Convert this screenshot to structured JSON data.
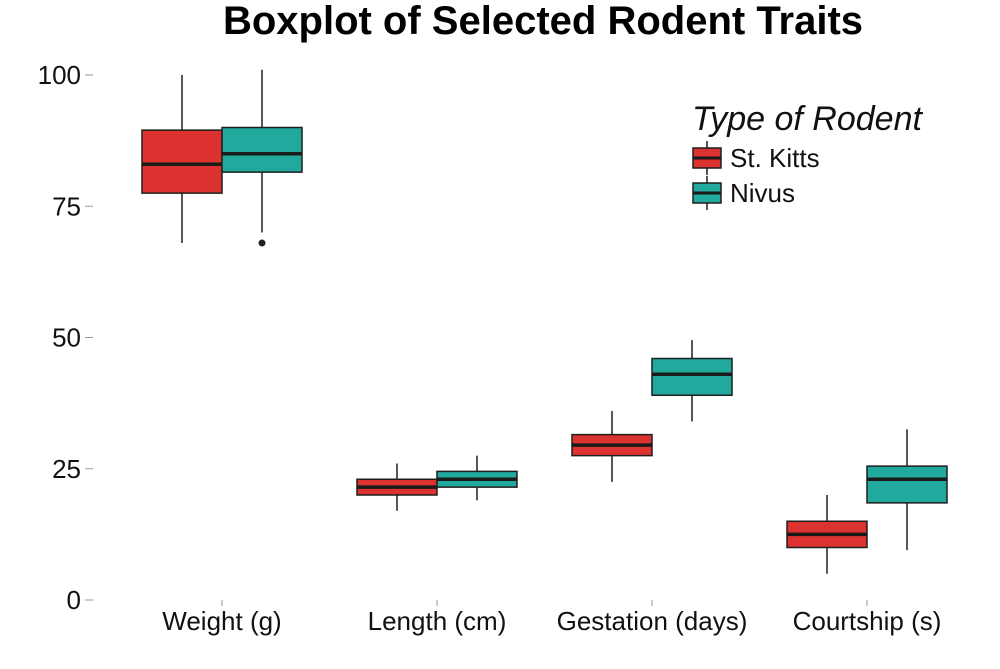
{
  "chart_data": {
    "type": "boxplot",
    "title": "Boxplot of Selected Rodent Traits",
    "xlabel": "",
    "ylabel": "",
    "categories": [
      "Weight (g)",
      "Length (cm)",
      "Gestation (days)",
      "Courtship (s)"
    ],
    "ylim": [
      0,
      100
    ],
    "yticks": [
      0,
      25,
      50,
      75,
      100
    ],
    "grid": false,
    "legend": {
      "title": "Type of Rodent",
      "position": "top-right"
    },
    "series": [
      {
        "name": "St. Kitts",
        "color": "#dc3330",
        "boxes": [
          {
            "min": 68,
            "q1": 77.5,
            "median": 83,
            "q3": 89.5,
            "max": 100,
            "outliers": []
          },
          {
            "min": 17,
            "q1": 20,
            "median": 21.5,
            "q3": 23,
            "max": 26,
            "outliers": []
          },
          {
            "min": 22.5,
            "q1": 27.5,
            "median": 29.5,
            "q3": 31.5,
            "max": 36,
            "outliers": []
          },
          {
            "min": 5,
            "q1": 10,
            "median": 12.5,
            "q3": 15,
            "max": 20,
            "outliers": []
          }
        ]
      },
      {
        "name": "Nivus",
        "color": "#21a99e",
        "boxes": [
          {
            "min": 70,
            "q1": 81.5,
            "median": 85,
            "q3": 90,
            "max": 101,
            "outliers": [
              68
            ]
          },
          {
            "min": 19,
            "q1": 21.5,
            "median": 23,
            "q3": 24.5,
            "max": 27.5,
            "outliers": []
          },
          {
            "min": 34,
            "q1": 39,
            "median": 43,
            "q3": 46,
            "max": 49.5,
            "outliers": []
          },
          {
            "min": 9.5,
            "q1": 18.5,
            "median": 23,
            "q3": 25.5,
            "max": 32.5,
            "outliers": []
          }
        ]
      }
    ]
  }
}
